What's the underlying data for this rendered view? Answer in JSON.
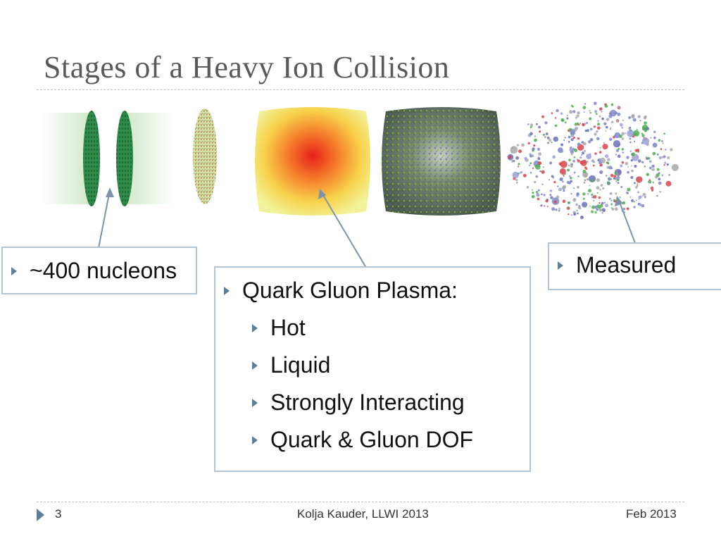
{
  "slide": {
    "title": "Stages of a Heavy Ion Collision",
    "callouts": {
      "nucleons": "~400 nucleons",
      "measured": "Measured",
      "qgp": {
        "heading": "Quark Gluon Plasma:",
        "items": [
          "Hot",
          "Liquid",
          "Strongly Interacting",
          "Quark & Gluon DOF"
        ]
      }
    },
    "footer": {
      "page_number": "3",
      "author": "Kolja Kauder, LLWI 2013",
      "date": "Feb 2013"
    }
  },
  "colors": {
    "title": "#5a5a5a",
    "bullet": "#5f7f96",
    "box_border": "#b3c4d2",
    "rule": "#b8c2cc"
  }
}
